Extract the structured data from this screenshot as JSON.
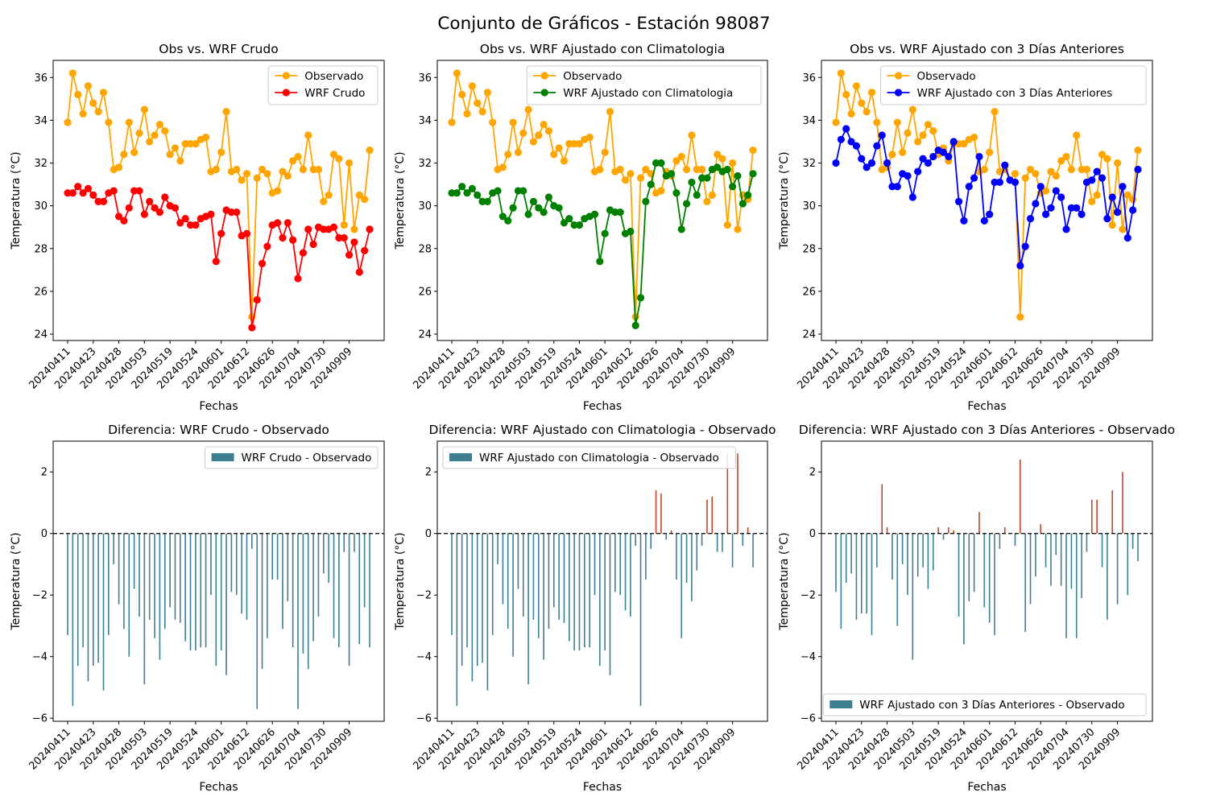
{
  "figure_title": "Conjunto de Gráficos - Estación 98087",
  "colors": {
    "observado": "#ffa500",
    "wrf_crudo": "#ff0000",
    "climatologia": "#008000",
    "tres_dias": "#0000ff",
    "bar_negative": "#3f7f93",
    "bar_positive": "#c0452a"
  },
  "chart_data": [
    {
      "type": "line",
      "title": "Obs vs. WRF Crudo",
      "xlabel": "Fechas",
      "ylabel": "Temperatura (°C)",
      "ylim": [
        23.7,
        36.8
      ],
      "yticks": [
        24,
        26,
        28,
        30,
        32,
        34,
        36
      ],
      "xtick_labels": [
        "20240411",
        "20240423",
        "20240428",
        "20240503",
        "20240519",
        "20240524",
        "20240601",
        "20240612",
        "20240626",
        "20240704",
        "20240730",
        "20240909"
      ],
      "legend_position": "upper right",
      "series": [
        {
          "name": "Observado",
          "values": [
            33.9,
            36.2,
            35.2,
            34.3,
            35.6,
            34.8,
            34.4,
            35.3,
            33.9,
            31.7,
            31.8,
            32.4,
            33.9,
            32.5,
            33.4,
            34.5,
            33.0,
            33.3,
            33.8,
            33.5,
            32.4,
            32.7,
            32.1,
            32.9,
            32.9,
            32.9,
            33.1,
            33.2,
            31.6,
            31.7,
            32.5,
            34.4,
            31.6,
            31.7,
            31.2,
            31.5,
            24.8,
            31.3,
            31.7,
            31.5,
            30.6,
            30.7,
            31.6,
            31.4,
            32.1,
            32.3,
            31.7,
            33.3,
            31.7,
            31.7,
            30.2,
            30.5,
            32.4,
            32.2,
            29.1,
            32.0,
            28.9,
            30.5,
            30.3,
            32.6
          ]
        },
        {
          "name": "WRF Crudo",
          "values": [
            30.6,
            30.6,
            30.9,
            30.6,
            30.8,
            30.5,
            30.2,
            30.2,
            30.6,
            30.7,
            29.5,
            29.3,
            29.9,
            30.7,
            30.7,
            29.6,
            30.2,
            29.9,
            29.7,
            30.4,
            30.0,
            29.9,
            29.2,
            29.4,
            29.1,
            29.1,
            29.4,
            29.5,
            29.6,
            27.4,
            28.7,
            29.8,
            29.7,
            29.7,
            28.6,
            28.7,
            24.3,
            25.6,
            27.3,
            28.1,
            29.1,
            29.2,
            28.5,
            29.2,
            28.4,
            26.6,
            27.8,
            28.9,
            28.2,
            29.0,
            28.9,
            28.9,
            29.0,
            28.5,
            28.5,
            27.7,
            28.3,
            26.9,
            27.9,
            28.9
          ]
        }
      ]
    },
    {
      "type": "line",
      "title": "Obs vs. WRF Ajustado con Climatologia",
      "xlabel": "Fechas",
      "ylabel": "Temperatura (°C)",
      "ylim": [
        23.7,
        36.8
      ],
      "yticks": [
        24,
        26,
        28,
        30,
        32,
        34,
        36
      ],
      "xtick_labels": [
        "20240411",
        "20240423",
        "20240428",
        "20240503",
        "20240519",
        "20240524",
        "20240601",
        "20240612",
        "20240626",
        "20240704",
        "20240730",
        "20240909"
      ],
      "legend_position": "upper right",
      "series": [
        {
          "name": "Observado",
          "values": [
            33.9,
            36.2,
            35.2,
            34.3,
            35.6,
            34.8,
            34.4,
            35.3,
            33.9,
            31.7,
            31.8,
            32.4,
            33.9,
            32.5,
            33.4,
            34.5,
            33.0,
            33.3,
            33.8,
            33.5,
            32.4,
            32.7,
            32.1,
            32.9,
            32.9,
            32.9,
            33.1,
            33.2,
            31.6,
            31.7,
            32.5,
            34.4,
            31.6,
            31.7,
            31.2,
            31.5,
            24.8,
            31.3,
            31.7,
            31.5,
            30.6,
            30.7,
            31.6,
            31.4,
            32.1,
            32.3,
            31.7,
            33.3,
            31.7,
            31.7,
            30.2,
            30.5,
            32.4,
            32.2,
            29.1,
            32.0,
            28.9,
            30.5,
            30.3,
            32.6
          ]
        },
        {
          "name": "WRF Ajustado con Climatologia",
          "values": [
            30.6,
            30.6,
            30.9,
            30.6,
            30.8,
            30.5,
            30.2,
            30.2,
            30.6,
            30.7,
            29.5,
            29.3,
            29.9,
            30.7,
            30.7,
            29.6,
            30.2,
            29.9,
            29.7,
            30.4,
            30.0,
            29.9,
            29.2,
            29.4,
            29.1,
            29.1,
            29.4,
            29.5,
            29.6,
            27.4,
            28.7,
            29.8,
            29.7,
            29.7,
            28.7,
            28.8,
            24.4,
            25.7,
            30.2,
            31.0,
            32.0,
            32.0,
            31.4,
            31.5,
            30.6,
            28.9,
            30.1,
            31.1,
            30.5,
            31.3,
            31.3,
            31.7,
            31.8,
            31.6,
            31.7,
            30.9,
            31.4,
            30.1,
            30.5,
            31.5
          ]
        }
      ]
    },
    {
      "type": "line",
      "title": "Obs vs. WRF Ajustado con 3 Días Anteriores",
      "xlabel": "Fechas",
      "ylabel": "Temperatura (°C)",
      "ylim": [
        23.7,
        36.8
      ],
      "yticks": [
        24,
        26,
        28,
        30,
        32,
        34,
        36
      ],
      "xtick_labels": [
        "20240411",
        "20240423",
        "20240428",
        "20240503",
        "20240519",
        "20240524",
        "20240601",
        "20240612",
        "20240626",
        "20240704",
        "20240730",
        "20240909"
      ],
      "legend_position": "upper right",
      "series": [
        {
          "name": "Observado",
          "values": [
            33.9,
            36.2,
            35.2,
            34.3,
            35.6,
            34.8,
            34.4,
            35.3,
            33.9,
            31.7,
            31.8,
            32.4,
            33.9,
            32.5,
            33.4,
            34.5,
            33.0,
            33.3,
            33.8,
            33.5,
            32.4,
            32.7,
            32.1,
            32.9,
            32.9,
            32.9,
            33.1,
            33.2,
            31.6,
            31.7,
            32.5,
            34.4,
            31.6,
            31.7,
            31.2,
            31.5,
            24.8,
            31.3,
            31.7,
            31.5,
            30.6,
            30.7,
            31.6,
            31.4,
            32.1,
            32.3,
            31.7,
            33.3,
            31.7,
            31.7,
            30.2,
            30.5,
            32.4,
            32.2,
            29.1,
            32.0,
            28.9,
            30.5,
            30.3,
            32.6
          ]
        },
        {
          "name": "WRF Ajustado con 3 Días Anteriores",
          "values": [
            32.0,
            33.1,
            33.6,
            33.0,
            32.8,
            32.2,
            31.8,
            32.0,
            32.8,
            33.3,
            32.0,
            30.9,
            30.9,
            31.5,
            31.4,
            30.4,
            31.6,
            32.2,
            32.0,
            32.3,
            32.6,
            32.5,
            32.3,
            33.0,
            30.2,
            29.3,
            30.9,
            31.3,
            32.3,
            29.3,
            29.6,
            31.1,
            31.1,
            31.9,
            31.2,
            31.1,
            27.2,
            28.1,
            29.4,
            30.1,
            30.9,
            29.6,
            29.9,
            30.7,
            30.4,
            28.9,
            29.9,
            29.9,
            29.6,
            31.1,
            31.2,
            31.6,
            31.3,
            29.4,
            30.4,
            29.7,
            30.9,
            28.5,
            29.8,
            31.7
          ]
        }
      ]
    },
    {
      "type": "bar",
      "title": "Diferencia: WRF Crudo - Observado",
      "xlabel": "Fechas",
      "ylabel": "Temperatura (°C)",
      "ylim": [
        -6.1,
        3.0
      ],
      "yticks": [
        -6,
        -4,
        -2,
        0,
        2
      ],
      "xtick_labels": [
        "20240411",
        "20240423",
        "20240428",
        "20240503",
        "20240519",
        "20240524",
        "20240601",
        "20240612",
        "20240626",
        "20240704",
        "20240730",
        "20240909"
      ],
      "legend_position": "upper right",
      "reference_line": 0,
      "series": [
        {
          "name": "WRF Crudo - Observado",
          "values": [
            -3.3,
            -5.6,
            -4.3,
            -3.7,
            -4.8,
            -4.3,
            -4.2,
            -5.1,
            -3.3,
            -1.0,
            -2.3,
            -3.1,
            -4.0,
            -1.8,
            -2.7,
            -4.9,
            -2.8,
            -3.4,
            -4.1,
            -3.1,
            -2.4,
            -2.8,
            -2.9,
            -3.5,
            -3.8,
            -3.8,
            -3.7,
            -3.7,
            -2.0,
            -4.3,
            -3.8,
            -4.6,
            -1.9,
            -2.0,
            -2.6,
            -2.8,
            -0.5,
            -5.7,
            -4.4,
            -3.4,
            -1.5,
            -1.5,
            -3.1,
            -2.2,
            -3.7,
            -5.7,
            -3.9,
            -4.4,
            -3.5,
            -2.7,
            -1.3,
            -1.6,
            -3.4,
            -3.7,
            -0.6,
            -4.3,
            -0.6,
            -3.6,
            -2.4,
            -3.7
          ]
        }
      ]
    },
    {
      "type": "bar",
      "title": "Diferencia: WRF Ajustado con Climatologia - Observado",
      "xlabel": "Fechas",
      "ylabel": "Temperatura (°C)",
      "ylim": [
        -6.1,
        3.0
      ],
      "yticks": [
        -6,
        -4,
        -2,
        0,
        2
      ],
      "xtick_labels": [
        "20240411",
        "20240423",
        "20240428",
        "20240503",
        "20240519",
        "20240524",
        "20240601",
        "20240612",
        "20240626",
        "20240704",
        "20240730",
        "20240909"
      ],
      "legend_position": "upper left",
      "reference_line": 0,
      "series": [
        {
          "name": "WRF Ajustado con Climatologia - Observado",
          "values": [
            -3.3,
            -5.6,
            -4.3,
            -3.7,
            -4.8,
            -4.3,
            -4.2,
            -5.1,
            -3.3,
            -1.0,
            -2.3,
            -3.1,
            -4.0,
            -1.8,
            -2.7,
            -4.9,
            -2.8,
            -3.4,
            -4.1,
            -3.1,
            -2.4,
            -2.8,
            -2.9,
            -3.5,
            -3.8,
            -3.8,
            -3.7,
            -3.7,
            -2.0,
            -4.3,
            -3.8,
            -4.6,
            -1.9,
            -2.0,
            -2.5,
            -2.7,
            -0.4,
            -5.6,
            -1.5,
            -0.5,
            1.4,
            1.3,
            -0.2,
            0.1,
            -1.5,
            -3.4,
            -1.6,
            -2.2,
            -1.2,
            -0.4,
            1.1,
            1.2,
            -0.6,
            -0.6,
            2.6,
            -1.1,
            2.6,
            -0.4,
            0.2,
            -1.1
          ]
        }
      ]
    },
    {
      "type": "bar",
      "title": "Diferencia: WRF Ajustado con 3 Días Anteriores - Observado",
      "xlabel": "Fechas",
      "ylabel": "Temperatura (°C)",
      "ylim": [
        -6.1,
        3.0
      ],
      "yticks": [
        -6,
        -4,
        -2,
        0,
        2
      ],
      "xtick_labels": [
        "20240411",
        "20240423",
        "20240428",
        "20240503",
        "20240519",
        "20240524",
        "20240601",
        "20240612",
        "20240626",
        "20240704",
        "20240730",
        "20240909"
      ],
      "legend_position": "lower right",
      "reference_line": 0,
      "series": [
        {
          "name": "WRF Ajustado con 3 Días Anteriores - Observado",
          "values": [
            -1.9,
            -3.1,
            -1.6,
            -1.3,
            -2.8,
            -2.6,
            -2.6,
            -3.3,
            -1.1,
            1.6,
            0.2,
            -1.5,
            -3.0,
            -1.0,
            -2.0,
            -4.1,
            -1.4,
            -1.1,
            -1.8,
            -1.2,
            0.2,
            -0.2,
            0.2,
            0.1,
            -2.7,
            -3.6,
            -2.2,
            -1.9,
            0.7,
            -2.4,
            -2.9,
            -3.3,
            -0.5,
            0.2,
            0.0,
            -0.4,
            2.4,
            -3.2,
            -2.3,
            -1.4,
            0.3,
            -1.1,
            -1.7,
            -0.7,
            -1.7,
            -3.4,
            -1.8,
            -3.4,
            -2.1,
            -0.6,
            1.1,
            1.1,
            -1.1,
            -2.8,
            1.4,
            -2.3,
            2.0,
            -2.0,
            -0.5,
            -0.9
          ]
        }
      ]
    }
  ]
}
